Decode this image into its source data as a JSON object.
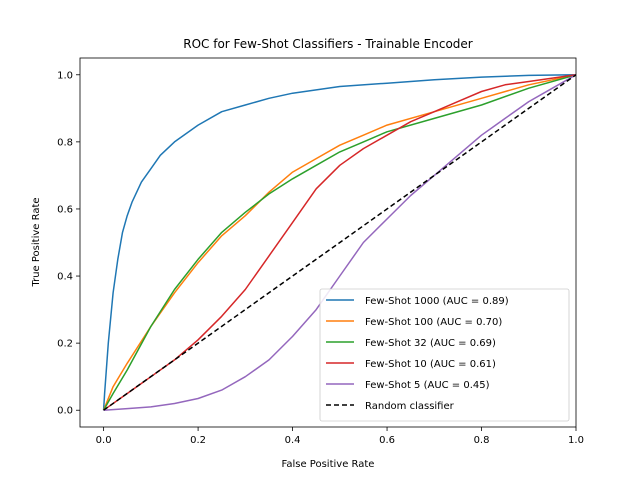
{
  "chart_data": {
    "type": "line",
    "title": "ROC for Few-Shot Classifiers - Trainable Encoder",
    "xlabel": "False Positive Rate",
    "ylabel": "True Positive Rate",
    "xlim": [
      -0.05,
      1.0
    ],
    "ylim": [
      -0.05,
      1.05
    ],
    "xticks": [
      "0.0",
      "0.2",
      "0.4",
      "0.6",
      "0.8",
      "1.0"
    ],
    "yticks": [
      "0.0",
      "0.2",
      "0.4",
      "0.6",
      "0.8",
      "1.0"
    ],
    "grid": false,
    "legend": "lower-right",
    "series": [
      {
        "name": "Few-Shot 1000 (AUC = 0.89)",
        "color": "#1f77b4",
        "x": [
          0,
          0.002,
          0.01,
          0.02,
          0.03,
          0.04,
          0.05,
          0.06,
          0.08,
          0.1,
          0.12,
          0.15,
          0.2,
          0.25,
          0.3,
          0.35,
          0.4,
          0.5,
          0.6,
          0.7,
          0.8,
          0.9,
          1.0
        ],
        "y": [
          0,
          0.05,
          0.2,
          0.35,
          0.45,
          0.53,
          0.58,
          0.62,
          0.68,
          0.72,
          0.76,
          0.8,
          0.85,
          0.89,
          0.91,
          0.93,
          0.945,
          0.965,
          0.975,
          0.985,
          0.993,
          0.998,
          1.0
        ]
      },
      {
        "name": "Few-Shot 100 (AUC = 0.70)",
        "color": "#ff7f0e",
        "x": [
          0,
          0.02,
          0.05,
          0.1,
          0.15,
          0.2,
          0.25,
          0.3,
          0.35,
          0.4,
          0.45,
          0.5,
          0.55,
          0.6,
          0.7,
          0.8,
          0.9,
          1.0
        ],
        "y": [
          0,
          0.07,
          0.14,
          0.25,
          0.35,
          0.44,
          0.52,
          0.58,
          0.65,
          0.71,
          0.75,
          0.79,
          0.82,
          0.85,
          0.89,
          0.93,
          0.97,
          1.0
        ]
      },
      {
        "name": "Few-Shot 32 (AUC = 0.69)",
        "color": "#2ca02c",
        "x": [
          0,
          0.02,
          0.05,
          0.1,
          0.15,
          0.2,
          0.25,
          0.3,
          0.35,
          0.4,
          0.45,
          0.5,
          0.55,
          0.6,
          0.7,
          0.8,
          0.9,
          1.0
        ],
        "y": [
          0,
          0.05,
          0.12,
          0.25,
          0.36,
          0.45,
          0.53,
          0.59,
          0.645,
          0.69,
          0.73,
          0.77,
          0.8,
          0.83,
          0.87,
          0.91,
          0.96,
          1.0
        ]
      },
      {
        "name": "Few-Shot 10 (AUC = 0.61)",
        "color": "#d62728",
        "x": [
          0,
          0.05,
          0.1,
          0.15,
          0.2,
          0.25,
          0.3,
          0.35,
          0.4,
          0.45,
          0.5,
          0.55,
          0.6,
          0.65,
          0.7,
          0.75,
          0.8,
          0.85,
          0.9,
          0.95,
          1.0
        ],
        "y": [
          0,
          0.05,
          0.1,
          0.15,
          0.21,
          0.28,
          0.36,
          0.46,
          0.56,
          0.66,
          0.73,
          0.78,
          0.82,
          0.86,
          0.89,
          0.92,
          0.95,
          0.97,
          0.98,
          0.99,
          1.0
        ]
      },
      {
        "name": "Few-Shot 5 (AUC = 0.45)",
        "color": "#9467bd",
        "x": [
          0,
          0.05,
          0.1,
          0.15,
          0.2,
          0.25,
          0.3,
          0.35,
          0.4,
          0.45,
          0.5,
          0.55,
          0.6,
          0.65,
          0.7,
          0.75,
          0.8,
          0.85,
          0.9,
          0.95,
          1.0
        ],
        "y": [
          0,
          0.005,
          0.01,
          0.02,
          0.035,
          0.06,
          0.1,
          0.15,
          0.22,
          0.3,
          0.4,
          0.5,
          0.57,
          0.64,
          0.7,
          0.76,
          0.82,
          0.87,
          0.92,
          0.96,
          1.0
        ]
      },
      {
        "name": "Random classifier",
        "color": "#000000",
        "dashed": true,
        "x": [
          0,
          1
        ],
        "y": [
          0,
          1
        ]
      }
    ]
  }
}
